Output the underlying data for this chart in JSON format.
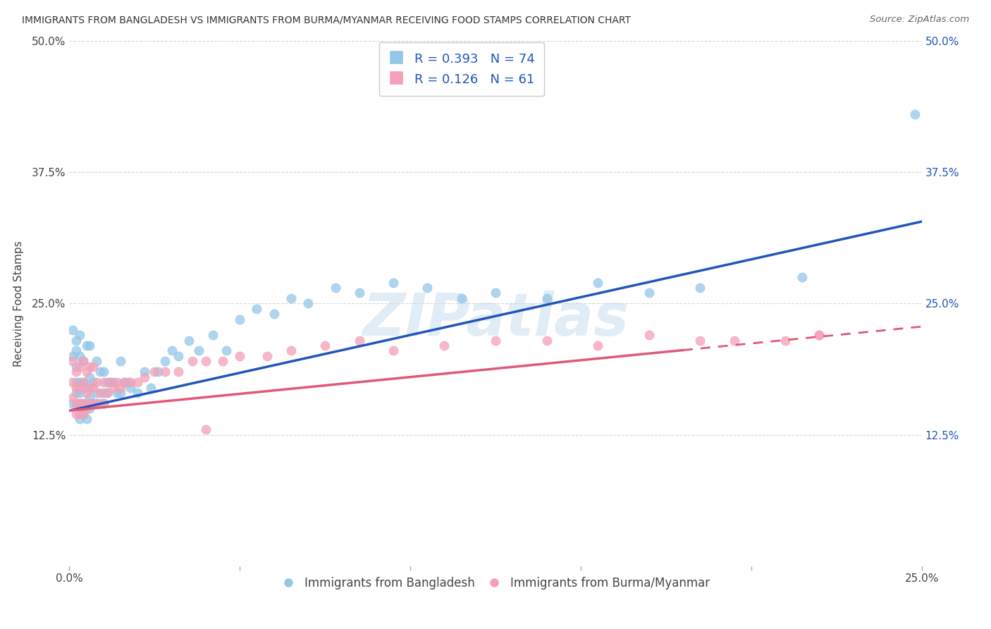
{
  "title": "IMMIGRANTS FROM BANGLADESH VS IMMIGRANTS FROM BURMA/MYANMAR RECEIVING FOOD STAMPS CORRELATION CHART",
  "source": "Source: ZipAtlas.com",
  "ylabel": "Receiving Food Stamps",
  "x_min": 0.0,
  "x_max": 0.25,
  "y_min": 0.0,
  "y_max": 0.5,
  "color_blue": "#94c6e8",
  "color_pink": "#f4a0b8",
  "line_blue": "#2255bb",
  "line_pink": "#e05878",
  "R_blue": 0.393,
  "N_blue": 74,
  "R_pink": 0.126,
  "N_pink": 61,
  "watermark": "ZIPatlas",
  "legend_label_blue": "Immigrants from Bangladesh",
  "legend_label_pink": "Immigrants from Burma/Myanmar",
  "blue_intercept": 0.148,
  "blue_slope": 0.72,
  "pink_intercept": 0.148,
  "pink_slope": 0.32,
  "blue_scatter_x": [
    0.001,
    0.001,
    0.001,
    0.002,
    0.002,
    0.002,
    0.002,
    0.002,
    0.003,
    0.003,
    0.003,
    0.003,
    0.003,
    0.003,
    0.004,
    0.004,
    0.004,
    0.004,
    0.005,
    0.005,
    0.005,
    0.005,
    0.006,
    0.006,
    0.006,
    0.006,
    0.007,
    0.007,
    0.008,
    0.008,
    0.008,
    0.009,
    0.009,
    0.01,
    0.01,
    0.01,
    0.011,
    0.011,
    0.012,
    0.013,
    0.014,
    0.015,
    0.015,
    0.016,
    0.017,
    0.018,
    0.02,
    0.022,
    0.024,
    0.026,
    0.028,
    0.03,
    0.032,
    0.035,
    0.038,
    0.042,
    0.046,
    0.05,
    0.055,
    0.06,
    0.065,
    0.07,
    0.078,
    0.085,
    0.095,
    0.105,
    0.115,
    0.125,
    0.14,
    0.155,
    0.17,
    0.185,
    0.215,
    0.248
  ],
  "blue_scatter_y": [
    0.155,
    0.2,
    0.225,
    0.165,
    0.175,
    0.19,
    0.205,
    0.215,
    0.14,
    0.155,
    0.165,
    0.175,
    0.2,
    0.22,
    0.145,
    0.155,
    0.175,
    0.195,
    0.14,
    0.155,
    0.17,
    0.21,
    0.15,
    0.16,
    0.18,
    0.21,
    0.155,
    0.175,
    0.155,
    0.165,
    0.195,
    0.155,
    0.185,
    0.155,
    0.165,
    0.185,
    0.165,
    0.175,
    0.175,
    0.175,
    0.165,
    0.165,
    0.195,
    0.175,
    0.175,
    0.17,
    0.165,
    0.185,
    0.17,
    0.185,
    0.195,
    0.205,
    0.2,
    0.215,
    0.205,
    0.22,
    0.205,
    0.235,
    0.245,
    0.24,
    0.255,
    0.25,
    0.265,
    0.26,
    0.27,
    0.265,
    0.255,
    0.26,
    0.255,
    0.27,
    0.26,
    0.265,
    0.275,
    0.43
  ],
  "pink_scatter_x": [
    0.001,
    0.001,
    0.001,
    0.002,
    0.002,
    0.002,
    0.002,
    0.003,
    0.003,
    0.003,
    0.003,
    0.004,
    0.004,
    0.004,
    0.004,
    0.005,
    0.005,
    0.005,
    0.006,
    0.006,
    0.006,
    0.007,
    0.007,
    0.007,
    0.008,
    0.008,
    0.009,
    0.01,
    0.01,
    0.011,
    0.012,
    0.013,
    0.014,
    0.015,
    0.016,
    0.018,
    0.02,
    0.022,
    0.025,
    0.028,
    0.032,
    0.036,
    0.04,
    0.045,
    0.05,
    0.058,
    0.065,
    0.075,
    0.085,
    0.095,
    0.11,
    0.125,
    0.14,
    0.155,
    0.17,
    0.185,
    0.195,
    0.21,
    0.22,
    0.22,
    0.04
  ],
  "pink_scatter_y": [
    0.16,
    0.175,
    0.195,
    0.145,
    0.155,
    0.17,
    0.185,
    0.145,
    0.155,
    0.17,
    0.19,
    0.145,
    0.155,
    0.175,
    0.195,
    0.15,
    0.165,
    0.185,
    0.155,
    0.17,
    0.19,
    0.155,
    0.17,
    0.19,
    0.155,
    0.175,
    0.165,
    0.155,
    0.175,
    0.165,
    0.175,
    0.17,
    0.175,
    0.17,
    0.175,
    0.175,
    0.175,
    0.18,
    0.185,
    0.185,
    0.185,
    0.195,
    0.195,
    0.195,
    0.2,
    0.2,
    0.205,
    0.21,
    0.215,
    0.205,
    0.21,
    0.215,
    0.215,
    0.21,
    0.22,
    0.215,
    0.215,
    0.215,
    0.22,
    0.22,
    0.13
  ]
}
